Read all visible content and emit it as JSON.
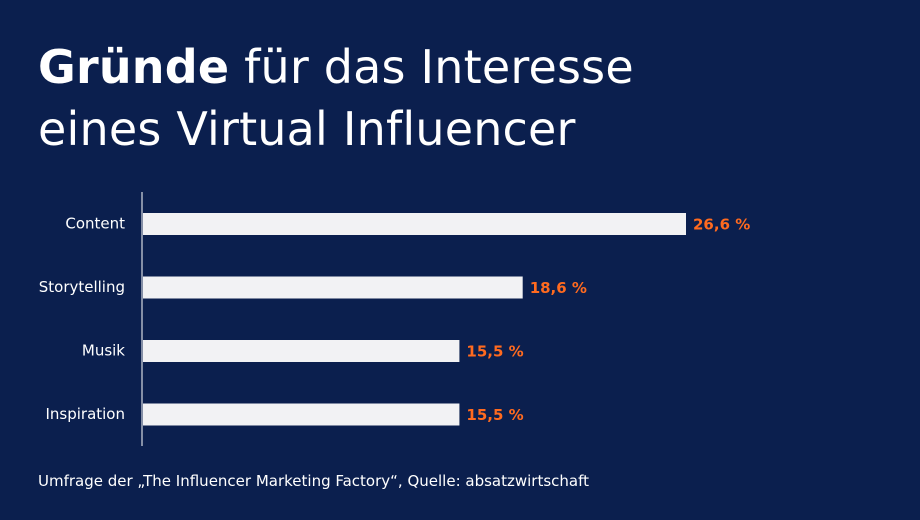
{
  "title": {
    "bold": "Gründe",
    "line1_rest": " für das Interesse",
    "line2": "eines Virtual Influencer"
  },
  "chart_data": {
    "type": "bar",
    "orientation": "horizontal",
    "categories": [
      "Content",
      "Storytelling",
      "Musik",
      "Inspiration"
    ],
    "values": [
      26.6,
      18.6,
      15.5,
      15.5
    ],
    "value_labels": [
      "26,6 %",
      "18,6 %",
      "15,5 %",
      "15,5 %"
    ],
    "xlim": [
      0,
      26.6
    ],
    "grid": false,
    "legend": "none"
  },
  "source": "Umfrage der „The Influencer Marketing Factory“, Quelle: absatzwirtschaft",
  "colors": {
    "background": "#0b1f4e",
    "bar": "#f2f2f4",
    "value_label": "#ff6a1f",
    "axis": "#ffffff",
    "text": "#ffffff"
  }
}
